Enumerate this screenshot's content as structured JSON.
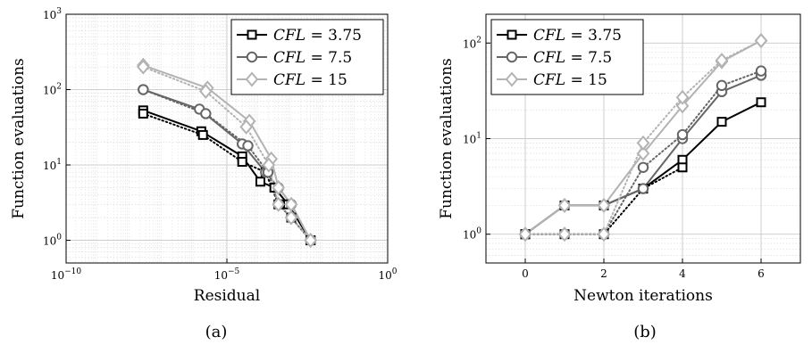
{
  "chart_data": [
    {
      "panel_label": "(a)",
      "type": "line",
      "xlabel": "Residual",
      "ylabel": "Function evaluations",
      "xscale": "log",
      "yscale": "log",
      "xlim": [
        1e-10,
        1
      ],
      "ylim": [
        0.5,
        1000
      ],
      "x_ticks": [
        {
          "value": 1e-10,
          "base": "10",
          "exp": "−10"
        },
        {
          "value": 1e-05,
          "base": "10",
          "exp": "−5"
        },
        {
          "value": 1,
          "base": "10",
          "exp": "0"
        }
      ],
      "y_ticks": [
        {
          "value": 1,
          "base": "10",
          "exp": "0"
        },
        {
          "value": 10,
          "base": "10",
          "exp": "1"
        },
        {
          "value": 100,
          "base": "10",
          "exp": "2"
        },
        {
          "value": 1000,
          "base": "10",
          "exp": "3"
        }
      ],
      "grid": true,
      "legend_position": "top-right",
      "series": [
        {
          "name": "CFL = 3.75",
          "color": "#000000",
          "marker": "square",
          "style": "solid",
          "x": [
            2.5e-08,
            1.6e-06,
            3e-05,
            0.00011,
            0.0003,
            0.0008,
            0.004
          ],
          "y": [
            53,
            28,
            13,
            6,
            5,
            3,
            1
          ]
        },
        {
          "name": "CFL = 3.75",
          "color": "#000000",
          "marker": "square",
          "style": "dotted",
          "x": [
            2.5e-08,
            1.8e-06,
            3e-05,
            0.00016,
            0.0004,
            0.001,
            0.004
          ],
          "y": [
            48,
            25,
            11,
            8,
            3,
            2,
            1
          ]
        },
        {
          "name": "CFL = 7.5",
          "color": "#666666",
          "marker": "circle",
          "style": "solid",
          "x": [
            2.5e-08,
            1.4e-06,
            3e-05,
            0.00016,
            0.0004,
            0.001,
            0.004
          ],
          "y": [
            100,
            55,
            19,
            8,
            5,
            3,
            1
          ]
        },
        {
          "name": "CFL = 7.5",
          "color": "#666666",
          "marker": "circle",
          "style": "dotted",
          "x": [
            2.5e-08,
            2.2e-06,
            4.5e-05,
            0.00019,
            0.0004,
            0.001,
            0.004
          ],
          "y": [
            100,
            48,
            18,
            8,
            3,
            2,
            1
          ]
        },
        {
          "name": "CFL = 15",
          "color": "#b3b3b3",
          "marker": "diamond",
          "style": "solid",
          "x": [
            2.5e-08,
            2.5e-06,
            5e-05,
            0.00024,
            0.0004,
            0.001,
            0.004
          ],
          "y": [
            210,
            105,
            38,
            12,
            5,
            3,
            1
          ]
        },
        {
          "name": "CFL = 15",
          "color": "#b3b3b3",
          "marker": "diamond",
          "style": "dotted",
          "x": [
            2.5e-08,
            2.2e-06,
            4e-05,
            0.0002,
            0.0004,
            0.001,
            0.004
          ],
          "y": [
            200,
            95,
            32,
            10,
            3,
            2,
            1
          ]
        }
      ]
    },
    {
      "panel_label": "(b)",
      "type": "line",
      "xlabel": "Newton iterations",
      "ylabel": "Function evaluations",
      "xscale": "linear",
      "yscale": "log",
      "xlim": [
        -1,
        7
      ],
      "ylim": [
        0.5,
        200
      ],
      "x_ticks": [
        {
          "value": 0,
          "label": "0"
        },
        {
          "value": 2,
          "label": "2"
        },
        {
          "value": 4,
          "label": "4"
        },
        {
          "value": 6,
          "label": "6"
        }
      ],
      "y_ticks": [
        {
          "value": 1,
          "base": "10",
          "exp": "0"
        },
        {
          "value": 10,
          "base": "10",
          "exp": "1"
        },
        {
          "value": 100,
          "base": "10",
          "exp": "2"
        }
      ],
      "grid": true,
      "legend_position": "top-left",
      "series": [
        {
          "name": "CFL = 3.75",
          "color": "#000000",
          "marker": "square",
          "style": "solid",
          "x": [
            0,
            1,
            2,
            3,
            4,
            5,
            6
          ],
          "y": [
            1,
            2,
            2,
            3,
            6,
            15,
            24
          ]
        },
        {
          "name": "CFL = 3.75",
          "color": "#000000",
          "marker": "square",
          "style": "dotted",
          "x": [
            0,
            1,
            2,
            3,
            4
          ],
          "y": [
            1,
            1,
            1,
            3,
            5
          ]
        },
        {
          "name": "CFL = 7.5",
          "color": "#666666",
          "marker": "circle",
          "style": "solid",
          "x": [
            0,
            1,
            2,
            3,
            4,
            5,
            6
          ],
          "y": [
            1,
            2,
            2,
            3,
            10,
            31,
            46
          ]
        },
        {
          "name": "CFL = 7.5",
          "color": "#666666",
          "marker": "circle",
          "style": "dotted",
          "x": [
            0,
            1,
            2,
            3,
            4,
            5,
            6
          ],
          "y": [
            1,
            1,
            1,
            5,
            11,
            36,
            51
          ]
        },
        {
          "name": "CFL = 15",
          "color": "#b3b3b3",
          "marker": "diamond",
          "style": "solid",
          "x": [
            0,
            1,
            2,
            3,
            4,
            5,
            6
          ],
          "y": [
            1,
            2,
            2,
            7,
            22,
            64,
            106
          ]
        },
        {
          "name": "CFL = 15",
          "color": "#b3b3b3",
          "marker": "diamond",
          "style": "dotted",
          "x": [
            0,
            1,
            2,
            3,
            4,
            5,
            6
          ],
          "y": [
            1,
            1,
            1,
            9,
            27,
            66,
            106
          ]
        }
      ]
    }
  ],
  "legend": [
    {
      "var": "CFL",
      "op": "=",
      "value": "3.75",
      "color": "#000000",
      "marker": "square"
    },
    {
      "var": "CFL",
      "op": "=",
      "value": "7.5",
      "color": "#666666",
      "marker": "circle"
    },
    {
      "var": "CFL",
      "op": "=",
      "value": "15",
      "color": "#b3b3b3",
      "marker": "diamond"
    }
  ]
}
